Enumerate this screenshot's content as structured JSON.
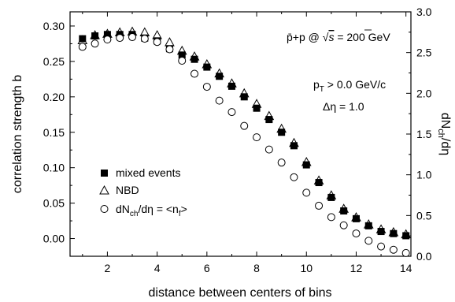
{
  "chart_data": {
    "type": "scatter",
    "xlabel": "distance between centers of bins",
    "ylabel_left": "correlation strength b",
    "ylabel_right": "dN_ch/dη",
    "xlim": [
      0.5,
      14.2
    ],
    "ylim_left": [
      -0.025,
      0.32
    ],
    "ylim_right": [
      0.0,
      3.0
    ],
    "x_ticks": [
      2,
      4,
      6,
      8,
      10,
      12,
      14
    ],
    "y_left_ticks": [
      0.0,
      0.05,
      0.1,
      0.15,
      0.2,
      0.25,
      0.3
    ],
    "y_right_ticks": [
      0.0,
      0.5,
      1.0,
      1.5,
      2.0,
      2.5,
      3.0
    ],
    "grid": false,
    "legend_placement": "bottom-left",
    "annotations": {
      "energy": "p̄+p @ √s = 200 GeV",
      "pt_cut": "pT > 0.0 GeV/c",
      "eta_window": "Δη = 1.0"
    },
    "x": [
      1.0,
      1.5,
      2.0,
      2.5,
      3.0,
      3.5,
      4.0,
      4.5,
      5.0,
      5.5,
      6.0,
      6.5,
      7.0,
      7.5,
      8.0,
      8.5,
      9.0,
      9.5,
      10.0,
      10.5,
      11.0,
      11.5,
      12.0,
      12.5,
      13.0,
      13.5,
      14.0
    ],
    "series": [
      {
        "name": "mixed events",
        "marker": "filled-square",
        "axis": "left",
        "values": [
          0.282,
          0.286,
          0.288,
          0.288,
          0.288,
          0.283,
          0.279,
          0.268,
          0.259,
          0.253,
          0.242,
          0.229,
          0.215,
          0.2,
          0.184,
          0.168,
          0.15,
          0.131,
          0.104,
          0.079,
          0.058,
          0.039,
          0.028,
          0.018,
          0.01,
          0.007,
          0.004
        ]
      },
      {
        "name": "NBD",
        "marker": "open-triangle",
        "axis": "left",
        "values": [
          0.28,
          0.287,
          0.289,
          0.291,
          0.292,
          0.291,
          0.287,
          0.277,
          0.265,
          0.257,
          0.246,
          0.233,
          0.219,
          0.205,
          0.19,
          0.173,
          0.155,
          0.135,
          0.108,
          0.082,
          0.061,
          0.042,
          0.03,
          0.02,
          0.013,
          0.009,
          0.006
        ]
      },
      {
        "name": "dNch/dη = <nf>",
        "marker": "open-circle",
        "axis": "right",
        "values": [
          2.57,
          2.61,
          2.66,
          2.68,
          2.69,
          2.67,
          2.63,
          2.54,
          2.4,
          2.24,
          2.08,
          1.91,
          1.77,
          1.6,
          1.46,
          1.31,
          1.15,
          0.97,
          0.78,
          0.62,
          0.48,
          0.38,
          0.28,
          0.19,
          0.12,
          0.08,
          0.04
        ]
      }
    ]
  }
}
